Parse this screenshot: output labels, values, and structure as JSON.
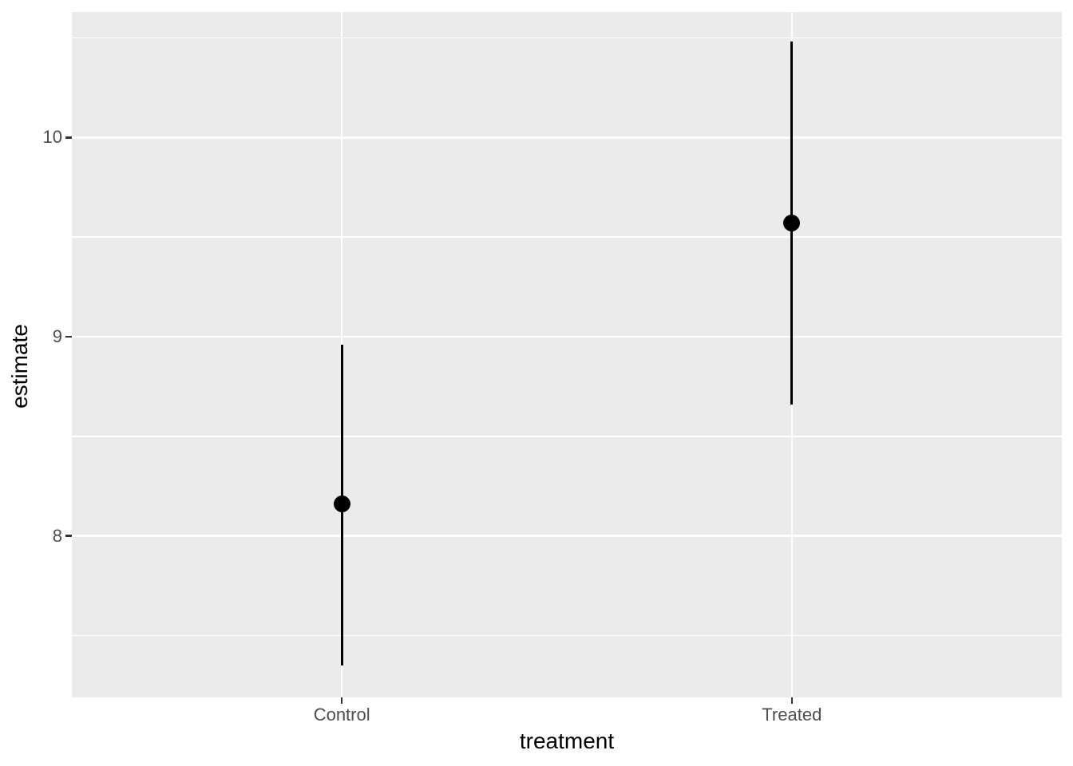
{
  "chart_data": {
    "type": "pointrange",
    "title": "",
    "xlabel": "treatment",
    "ylabel": "estimate",
    "categories": [
      "Control",
      "Treated"
    ],
    "points": [
      {
        "category": "Control",
        "estimate": 8.16,
        "ymin": 7.35,
        "ymax": 8.96
      },
      {
        "category": "Treated",
        "estimate": 9.57,
        "ymin": 8.66,
        "ymax": 10.48
      }
    ],
    "y_major_ticks": [
      8,
      9,
      10
    ],
    "y_minor_gridlines": [
      7.5,
      8.5,
      9.5,
      10.5
    ],
    "ylim": [
      7.19,
      10.63
    ],
    "grid": "major+minor",
    "legend_position": "none",
    "colors": {
      "figure_background": "#FFFFFF",
      "panel_background": "#EBEBEB",
      "gridline": "#FFFFFF",
      "geom": "#000000",
      "tick_label": "#4D4D4D",
      "axis_title": "#000000",
      "tick_mark": "#333333"
    }
  }
}
